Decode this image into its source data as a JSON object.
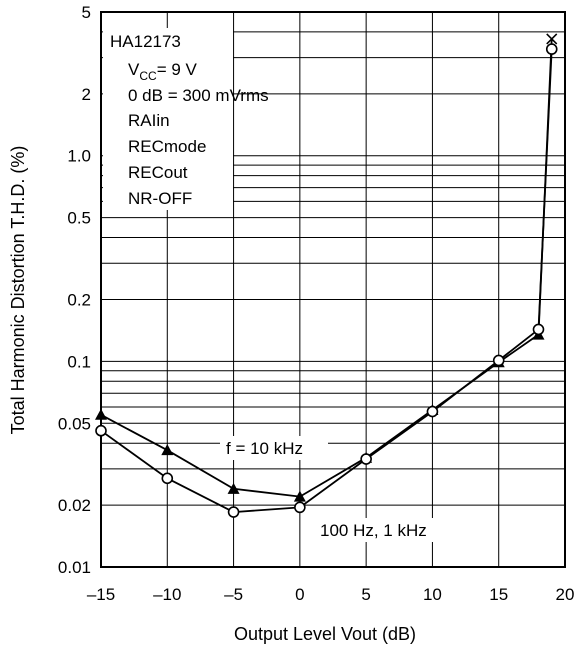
{
  "chart_data": {
    "type": "line",
    "device": "HA12173",
    "conditions": [
      "V",
      "CC",
      "= 9 V",
      "0 dB = 300 mVrms",
      "RAIin",
      "RECmode",
      "RECout",
      "NR-OFF"
    ],
    "xlabel": "Output Level Vout (dB)",
    "ylabel": "Total Harmonic Distortion T.H.D. (%)",
    "xlim": [
      -15,
      20
    ],
    "ylim": [
      0.01,
      5
    ],
    "yscale": "log",
    "grid": true,
    "x_ticks": [
      -15,
      -10,
      -5,
      0,
      5,
      10,
      15,
      20
    ],
    "x_tick_labels": [
      "–15",
      "–10",
      "–5",
      "0",
      "5",
      "10",
      "15",
      "20"
    ],
    "y_ticks": [
      0.01,
      0.02,
      0.05,
      0.1,
      0.2,
      0.5,
      1.0,
      2,
      5
    ],
    "y_tick_labels": [
      "0.01",
      "0.02",
      "0.05",
      "0.1",
      "0.2",
      "0.5",
      "1.0",
      "2",
      "5"
    ],
    "series": [
      {
        "name": "f = 10 kHz",
        "marker": "triangle",
        "x": [
          -15,
          -10,
          -5,
          0,
          5,
          10,
          15,
          18,
          19
        ],
        "y": [
          0.055,
          0.037,
          0.024,
          0.022,
          0.034,
          0.058,
          0.099,
          0.135,
          3.7
        ]
      },
      {
        "name": "100 Hz, 1 kHz",
        "marker": "circle",
        "x": [
          -15,
          -10,
          -5,
          0,
          5,
          10,
          15,
          18,
          19
        ],
        "y": [
          0.046,
          0.027,
          0.0185,
          0.0195,
          0.0335,
          0.057,
          0.101,
          0.143,
          3.3
        ]
      }
    ],
    "colors": {
      "line": "#000000",
      "grid": "#000000",
      "background": "#ffffff"
    }
  }
}
